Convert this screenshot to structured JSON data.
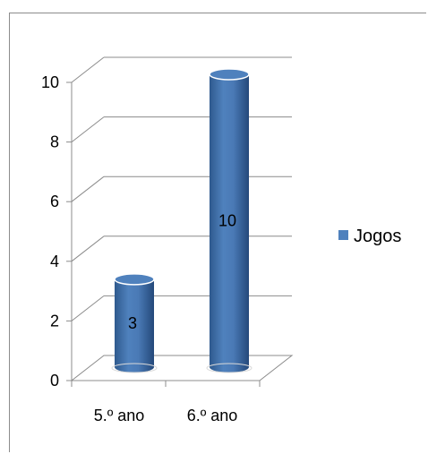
{
  "chart_data": {
    "type": "bar",
    "style": "3d-cylinder",
    "categories": [
      "5.º ano",
      "6.º ano"
    ],
    "series": [
      {
        "name": "Jogos",
        "values": [
          3,
          10
        ],
        "color": "#4f81bd"
      }
    ],
    "data_labels": [
      "3",
      "10"
    ],
    "y_ticks": [
      "0",
      "2",
      "4",
      "6",
      "8",
      "10"
    ],
    "ylim": [
      0,
      10
    ],
    "grid": true,
    "legend_position": "right"
  }
}
